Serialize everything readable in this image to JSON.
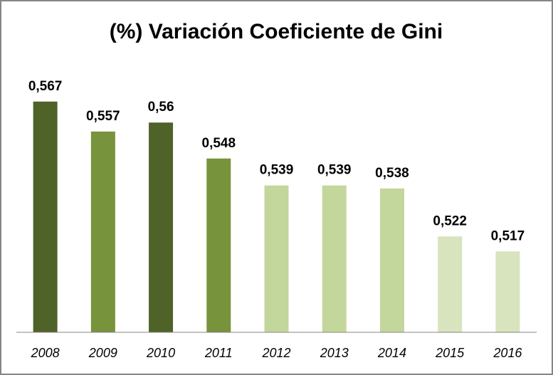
{
  "chart_data": {
    "type": "bar",
    "title": "(%) Variación Coeficiente de Gini",
    "categories": [
      "2008",
      "2009",
      "2010",
      "2011",
      "2012",
      "2013",
      "2014",
      "2015",
      "2016"
    ],
    "values": [
      0.567,
      0.557,
      0.56,
      0.548,
      0.539,
      0.539,
      0.538,
      0.522,
      0.517
    ],
    "value_labels": [
      "0,567",
      "0,557",
      "0,56",
      "0,548",
      "0,539",
      "0,539",
      "0,538",
      "0,522",
      "0,517"
    ],
    "colors": [
      "#4f6228",
      "#77933c",
      "#4f6228",
      "#77933c",
      "#c3d69b",
      "#c3d69b",
      "#c3d69b",
      "#d7e4bd",
      "#d7e4bd"
    ],
    "ylim": [
      0.49,
      0.58
    ]
  }
}
